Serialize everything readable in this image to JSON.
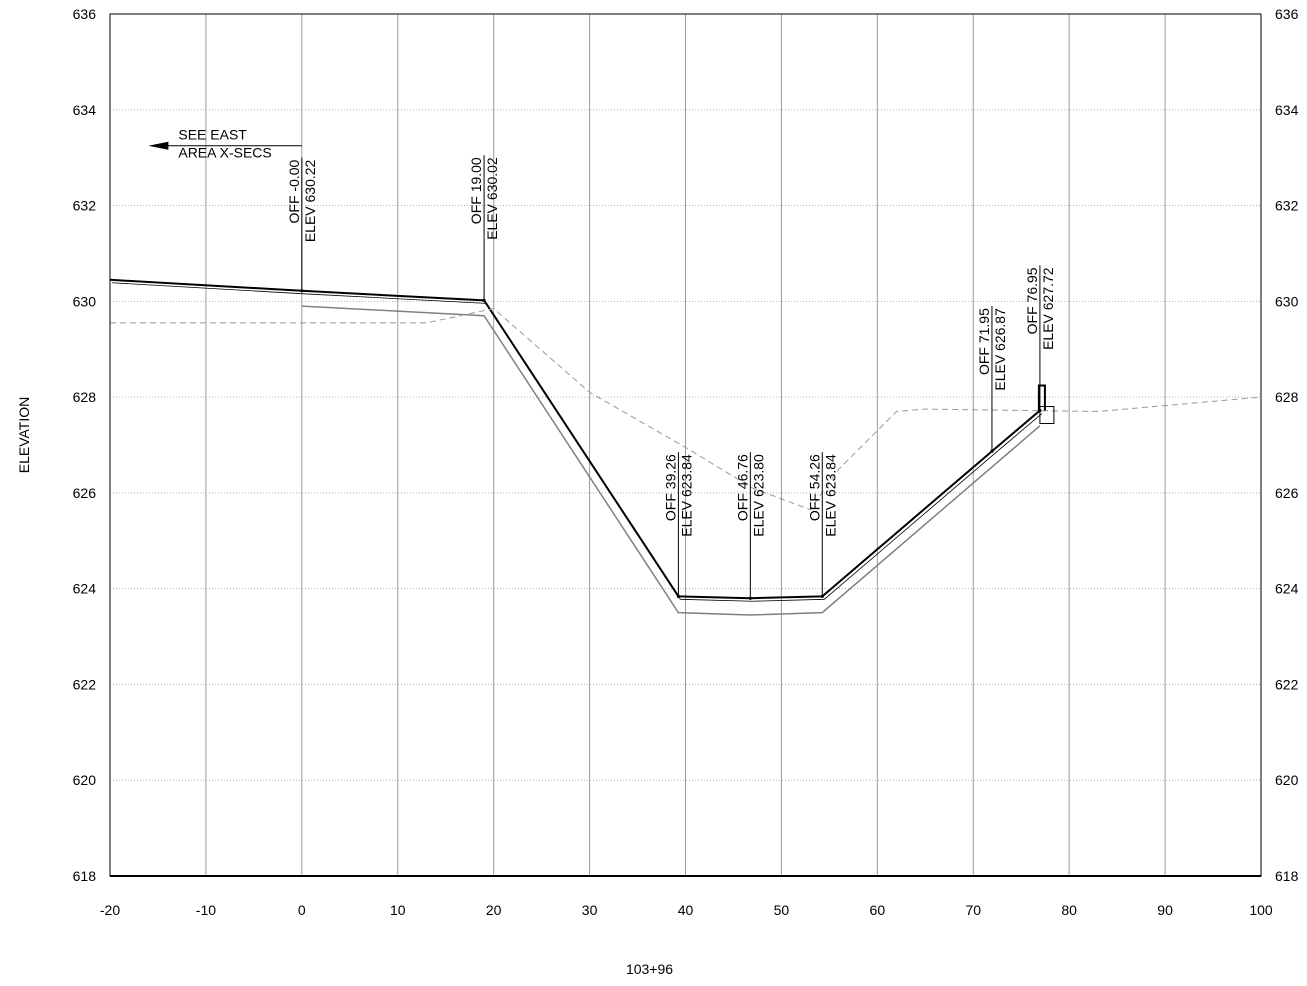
{
  "chart_data": {
    "type": "line",
    "title": "",
    "xlabel": "103+96",
    "ylabel": "ELEVATION",
    "xlim": [
      -20,
      100
    ],
    "ylim": [
      618,
      636
    ],
    "xticks": [
      -20,
      -10,
      0,
      10,
      20,
      30,
      40,
      50,
      60,
      70,
      80,
      90,
      100
    ],
    "yticks": [
      618,
      620,
      622,
      624,
      626,
      628,
      630,
      632,
      634,
      636
    ],
    "grid": true,
    "series": [
      {
        "style": "proposed-finish-grade",
        "color": "#000000",
        "x": [
          -20,
          0,
          19.0,
          39.26,
          46.76,
          54.26,
          71.95,
          76.95
        ],
        "y": [
          630.45,
          630.22,
          630.02,
          623.84,
          623.8,
          623.84,
          626.87,
          627.72
        ]
      },
      {
        "style": "subgrade",
        "color": "#808080",
        "x": [
          0,
          19.0,
          39.26,
          46.76,
          54.26,
          76.95
        ],
        "y": [
          629.9,
          629.7,
          623.5,
          623.45,
          623.5,
          627.4
        ]
      },
      {
        "style": "existing-ground",
        "color": "#999999",
        "x": [
          -20,
          13,
          20,
          30,
          40,
          47,
          53,
          56,
          62,
          65,
          83,
          100
        ],
        "y": [
          629.55,
          629.55,
          629.85,
          628.1,
          626.95,
          626.1,
          625.65,
          626.5,
          627.7,
          627.75,
          627.7,
          628.0
        ]
      }
    ],
    "callouts": [
      {
        "offset": 0,
        "off": "OFF -0.00",
        "elev": "ELEV 630.22",
        "top": 633.0
      },
      {
        "offset": 19.0,
        "off": "OFF 19.00",
        "elev": "ELEV 630.02",
        "top": 633.05
      },
      {
        "offset": 39.26,
        "off": "OFF 39.26",
        "elev": "ELEV 623.84",
        "top": 626.85
      },
      {
        "offset": 46.76,
        "off": "OFF 46.76",
        "elev": "ELEV 623.80",
        "top": 626.85
      },
      {
        "offset": 54.26,
        "off": "OFF 54.26",
        "elev": "ELEV 623.84",
        "top": 626.85
      },
      {
        "offset": 71.95,
        "off": "OFF 71.95",
        "elev": "ELEV 626.87",
        "top": 629.9
      },
      {
        "offset": 76.95,
        "off": "OFF 76.95",
        "elev": "ELEV 627.72",
        "top": 630.75
      }
    ],
    "annotation": {
      "lines": [
        "SEE EAST",
        "AREA X-SECS"
      ],
      "arrow_from": 0,
      "arrow_to": -16,
      "y": 633.25
    }
  }
}
